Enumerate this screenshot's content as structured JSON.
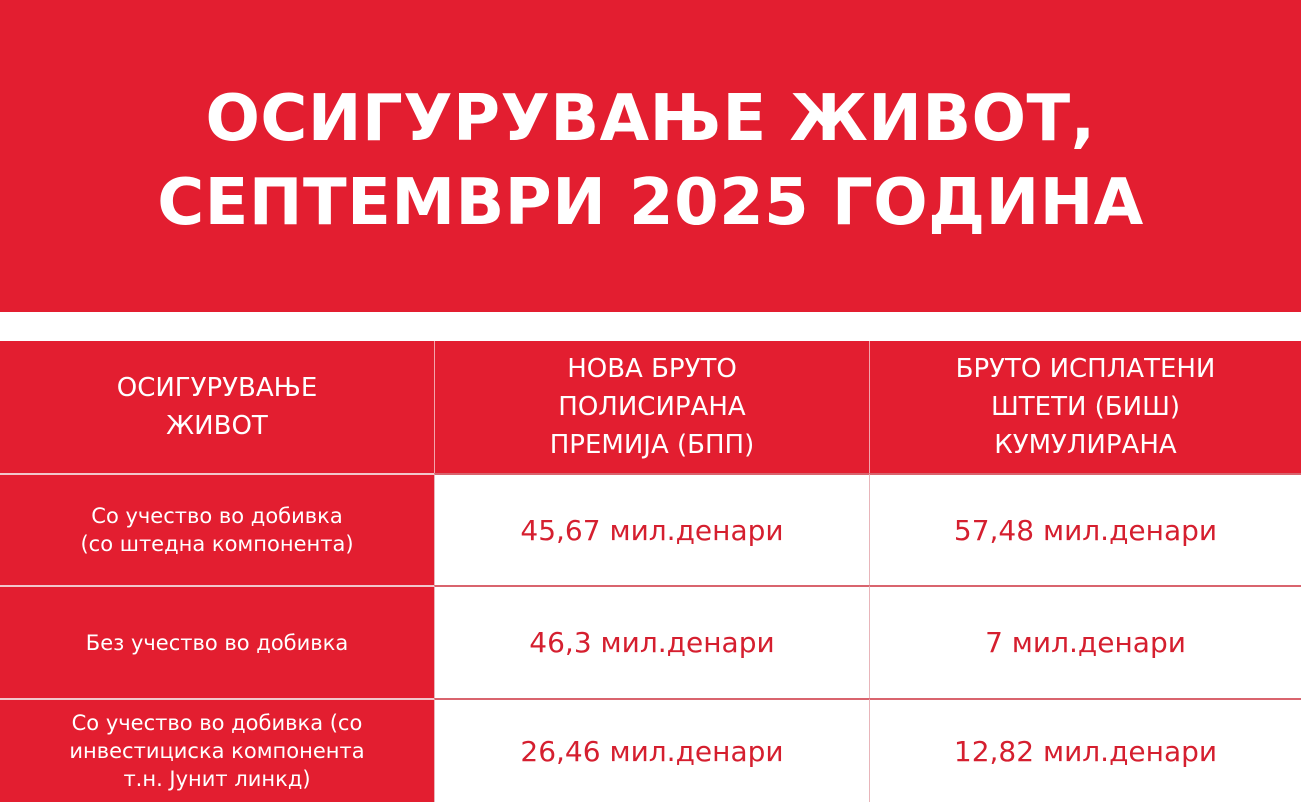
{
  "title": {
    "line1": "ОСИГУРУВАЊЕ ЖИВОТ,",
    "line2": "СЕПТЕМВРИ 2025 ГОДИНА"
  },
  "colors": {
    "brand_red": "#e31e30",
    "value_text": "#d51f2f"
  },
  "table": {
    "headers": [
      {
        "line1": "ОСИГУРУВАЊЕ",
        "line2": "ЖИВОТ",
        "line3": ""
      },
      {
        "line1": "НОВА БРУТО",
        "line2": "ПОЛИСИРАНА",
        "line3": "ПРЕМИЈА (БПП)"
      },
      {
        "line1": "БРУТО ИСПЛАТЕНИ",
        "line2": "ШТЕТИ (БИШ)",
        "line3": "КУМУЛИРАНА"
      }
    ],
    "rows": [
      {
        "label1": "Со учество во добивка",
        "label2": "(со штедна компонента)",
        "label3": "",
        "premium": "45,67 мил.денари",
        "claims": "57,48 мил.денари"
      },
      {
        "label1": "Без учество во добивка",
        "label2": "",
        "label3": "",
        "premium": "46,3 мил.денари",
        "claims": "7 мил.денари"
      },
      {
        "label1": "Со учество во добивка (со",
        "label2": "инвестициска компонента",
        "label3": "т.н. Јунит линкд)",
        "premium": "26,46 мил.денари",
        "claims": "12,82 мил.денари"
      }
    ]
  }
}
